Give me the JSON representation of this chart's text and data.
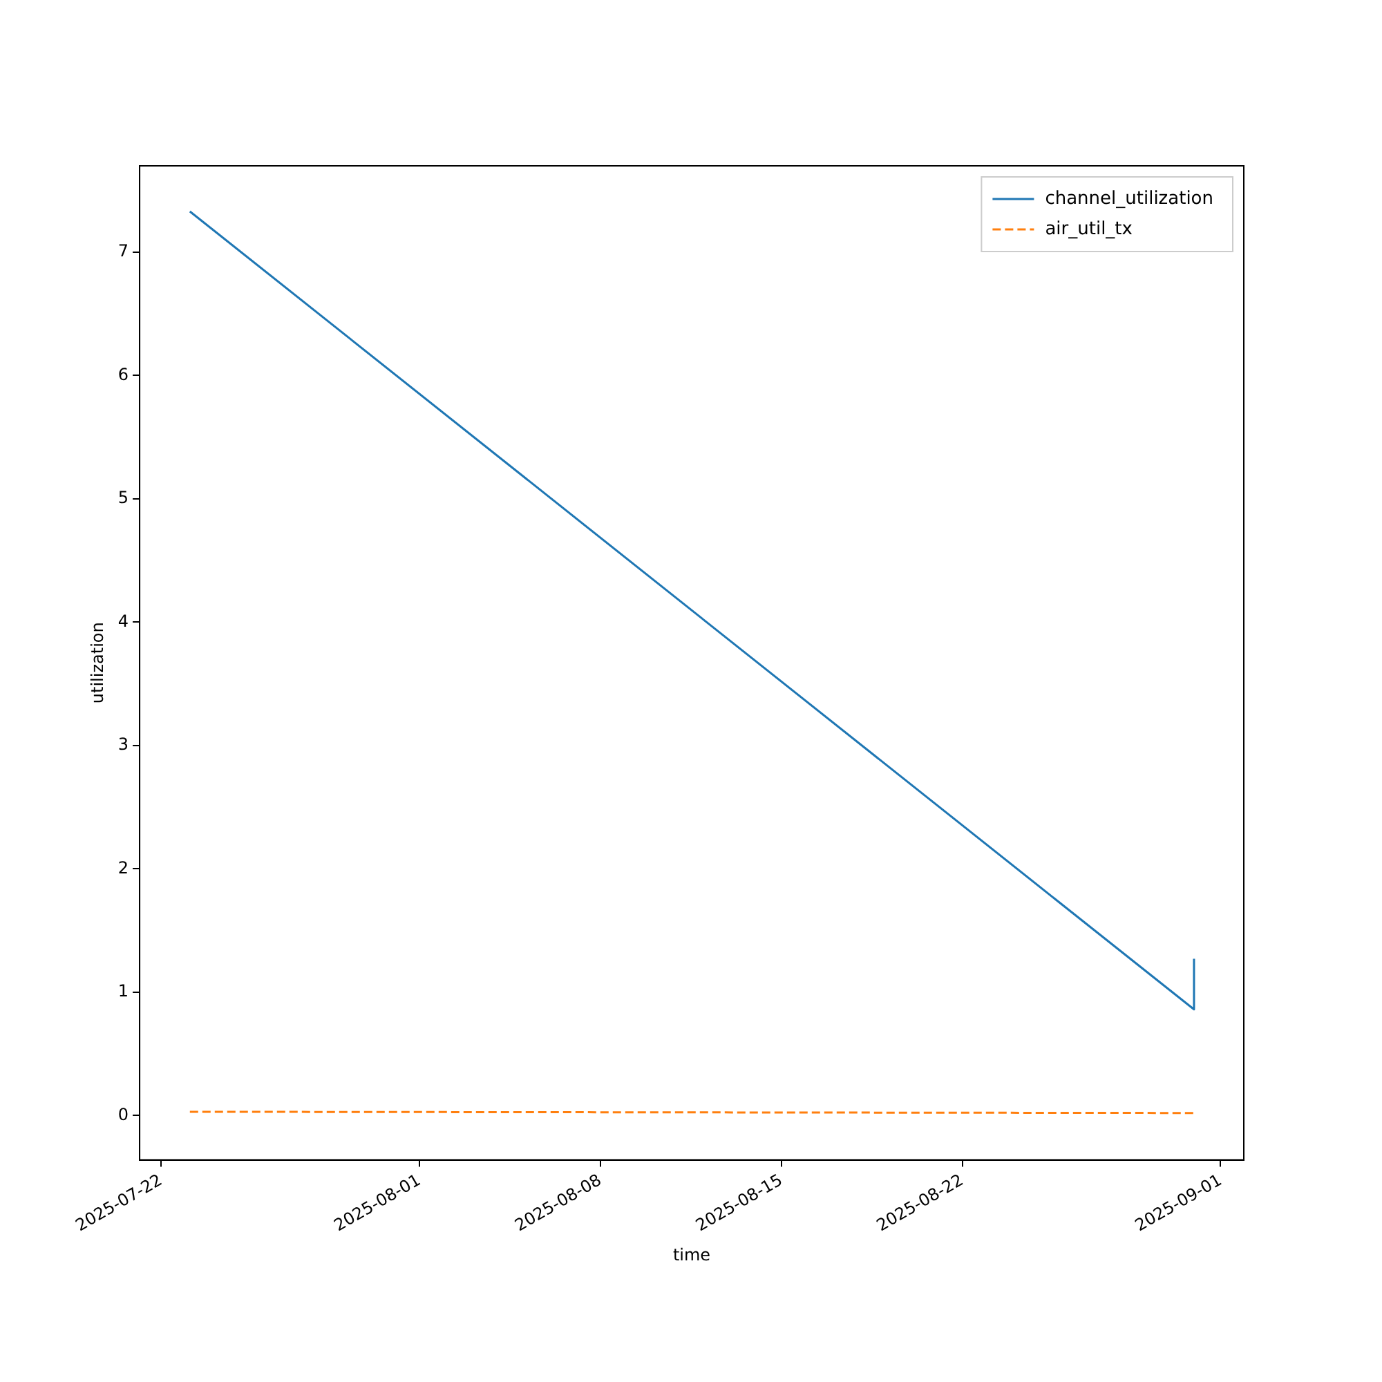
{
  "chart_data": {
    "type": "line",
    "xlabel": "time",
    "ylabel": "utilization",
    "series": [
      {
        "name": "channel_utilization",
        "color": "#1f77b4",
        "line_style": "solid",
        "x": [
          "2025-07-23T02:40",
          "2025-08-30T23:15",
          "2025-08-30T23:15"
        ],
        "values": [
          7.33,
          0.86,
          1.27
        ]
      },
      {
        "name": "air_util_tx",
        "color": "#ff7f0e",
        "line_style": "dashed",
        "x": [
          "2025-07-23T02:40",
          "2025-08-30T23:15"
        ],
        "values": [
          0.03,
          0.02
        ]
      }
    ],
    "xlim": [
      "2025-07-21T04:00",
      "2025-09-01T21:30"
    ],
    "xticks": [
      "2025-07-22",
      "2025-08-01",
      "2025-08-08",
      "2025-08-15",
      "2025-08-22",
      "2025-09-01"
    ],
    "ylim": [
      -0.36,
      7.7
    ],
    "yticks": [
      0,
      1,
      2,
      3,
      4,
      5,
      6,
      7
    ],
    "grid": false,
    "legend": "top right",
    "marker": "none"
  }
}
